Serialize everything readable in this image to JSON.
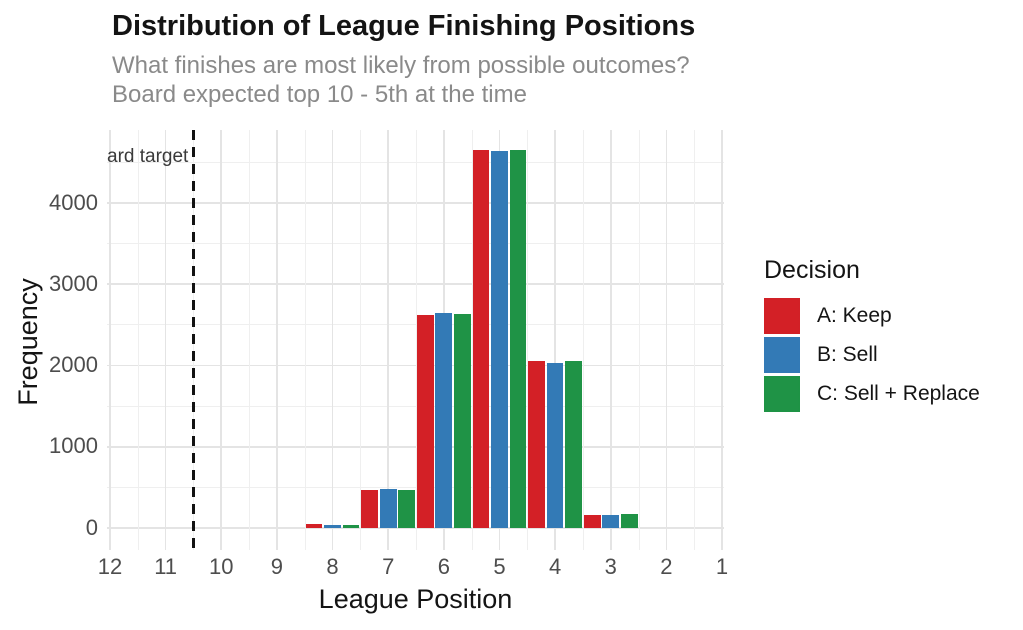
{
  "chart_data": {
    "type": "bar",
    "title": "Distribution of League Finishing Positions",
    "subtitle_line1": "What finishes are most likely from possible outcomes?",
    "subtitle_line2": "Board expected top 10 - 5th at the time",
    "xlabel": "League Position",
    "ylabel": "Frequency",
    "categories": [
      "12",
      "11",
      "10",
      "9",
      "8",
      "7",
      "6",
      "5",
      "4",
      "3",
      "2",
      "1"
    ],
    "x_axis_reversed": true,
    "y_ticks": [
      0,
      1000,
      2000,
      3000,
      4000
    ],
    "ylim": [
      0,
      4890
    ],
    "grid": {
      "major": true,
      "minor": true
    },
    "legend": {
      "title": "Decision",
      "position": "right"
    },
    "series": [
      {
        "name": "A: Keep",
        "color": "#D32026",
        "values": [
          0,
          0,
          0,
          0,
          40,
          460,
          2610,
          4650,
          2055,
          155,
          0,
          0
        ]
      },
      {
        "name": "B: Sell",
        "color": "#337AB6",
        "values": [
          0,
          0,
          0,
          0,
          35,
          475,
          2640,
          4640,
          2030,
          150,
          0,
          0
        ]
      },
      {
        "name": "C: Sell + Replace",
        "color": "#1F9346",
        "values": [
          0,
          0,
          0,
          0,
          35,
          465,
          2625,
          4650,
          2045,
          165,
          0,
          0
        ]
      }
    ],
    "vline": {
      "x": 10.5,
      "style": "dashed",
      "color": "#000000",
      "label_visible": "ard target"
    }
  }
}
